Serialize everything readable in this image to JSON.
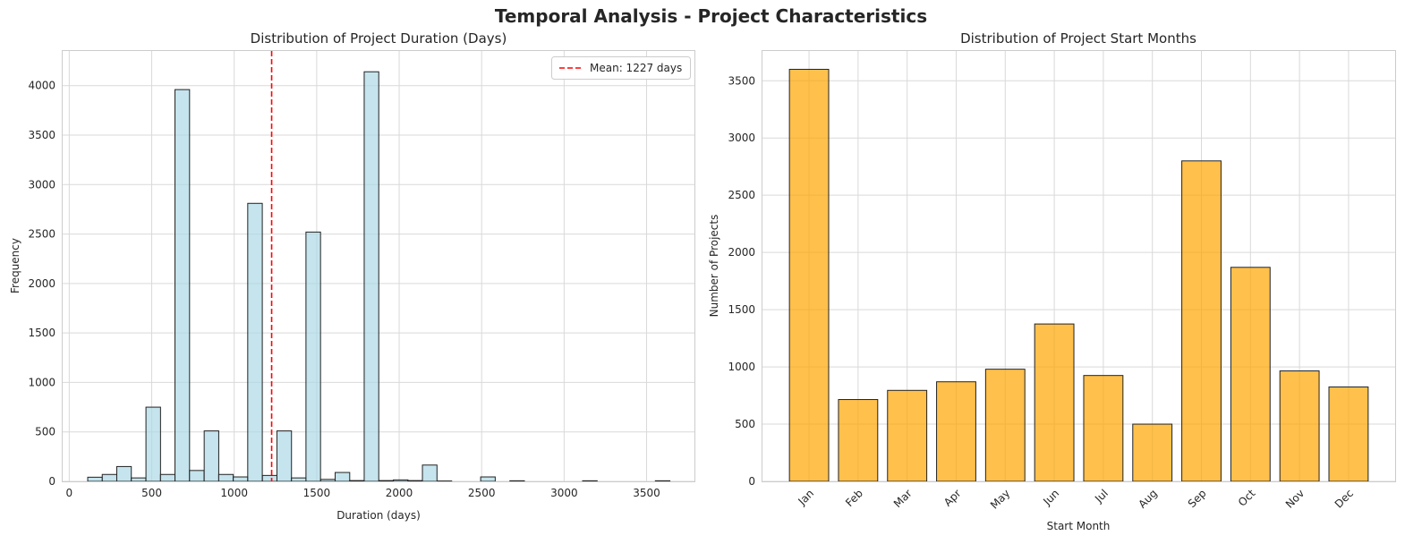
{
  "figure": {
    "title": "Temporal Analysis - Project Characteristics"
  },
  "chart_data": [
    {
      "type": "bar",
      "subtype": "histogram",
      "title": "Distribution of Project Duration (Days)",
      "xlabel": "Duration (days)",
      "ylabel": "Frequency",
      "xlim": [
        -40,
        3790
      ],
      "ylim": [
        0,
        4350
      ],
      "xticks": [
        0,
        500,
        1000,
        1500,
        2000,
        2500,
        3000,
        3500
      ],
      "yticks": [
        0,
        500,
        1000,
        1500,
        2000,
        2500,
        3000,
        3500,
        4000
      ],
      "grid": true,
      "bin_width": 88.3,
      "bins": [
        {
          "x": 112,
          "value": 42
        },
        {
          "x": 200,
          "value": 70
        },
        {
          "x": 288,
          "value": 150
        },
        {
          "x": 376,
          "value": 35
        },
        {
          "x": 465,
          "value": 750
        },
        {
          "x": 553,
          "value": 70
        },
        {
          "x": 641,
          "value": 3960
        },
        {
          "x": 729,
          "value": 110
        },
        {
          "x": 818,
          "value": 510
        },
        {
          "x": 906,
          "value": 70
        },
        {
          "x": 994,
          "value": 45
        },
        {
          "x": 1082,
          "value": 2810
        },
        {
          "x": 1171,
          "value": 60
        },
        {
          "x": 1259,
          "value": 510
        },
        {
          "x": 1347,
          "value": 35
        },
        {
          "x": 1435,
          "value": 2520
        },
        {
          "x": 1524,
          "value": 20
        },
        {
          "x": 1612,
          "value": 90
        },
        {
          "x": 1700,
          "value": 8
        },
        {
          "x": 1788,
          "value": 4140
        },
        {
          "x": 1877,
          "value": 8
        },
        {
          "x": 1965,
          "value": 15
        },
        {
          "x": 2053,
          "value": 8
        },
        {
          "x": 2141,
          "value": 165
        },
        {
          "x": 2230,
          "value": 4
        },
        {
          "x": 2318,
          "value": 0
        },
        {
          "x": 2406,
          "value": 0
        },
        {
          "x": 2494,
          "value": 45
        },
        {
          "x": 2583,
          "value": 0
        },
        {
          "x": 2671,
          "value": 6
        },
        {
          "x": 2759,
          "value": 0
        },
        {
          "x": 2847,
          "value": 0
        },
        {
          "x": 2936,
          "value": 0
        },
        {
          "x": 3024,
          "value": 0
        },
        {
          "x": 3112,
          "value": 6
        },
        {
          "x": 3200,
          "value": 0
        },
        {
          "x": 3289,
          "value": 0
        },
        {
          "x": 3377,
          "value": 0
        },
        {
          "x": 3465,
          "value": 0
        },
        {
          "x": 3553,
          "value": 6
        }
      ],
      "mean_line": {
        "x": 1227,
        "label": "Mean: 1227 days",
        "color": "#ff0000"
      },
      "legend": "top-right",
      "colors": {
        "bar_fill": "#add8e6",
        "bar_edge": "#222222"
      }
    },
    {
      "type": "bar",
      "title": "Distribution of Project Start Months",
      "xlabel": "Start Month",
      "ylabel": "Number of Projects",
      "categories": [
        "Jan",
        "Feb",
        "Mar",
        "Apr",
        "May",
        "Jun",
        "Jul",
        "Aug",
        "Sep",
        "Oct",
        "Nov",
        "Dec"
      ],
      "values": [
        3600,
        715,
        795,
        870,
        980,
        1375,
        925,
        500,
        2800,
        1870,
        965,
        825
      ],
      "ylim": [
        0,
        3760
      ],
      "yticks": [
        0,
        500,
        1000,
        1500,
        2000,
        2500,
        3000,
        3500
      ],
      "grid": true,
      "colors": {
        "bar_fill": "#ffa500",
        "bar_edge": "#222222"
      }
    }
  ]
}
